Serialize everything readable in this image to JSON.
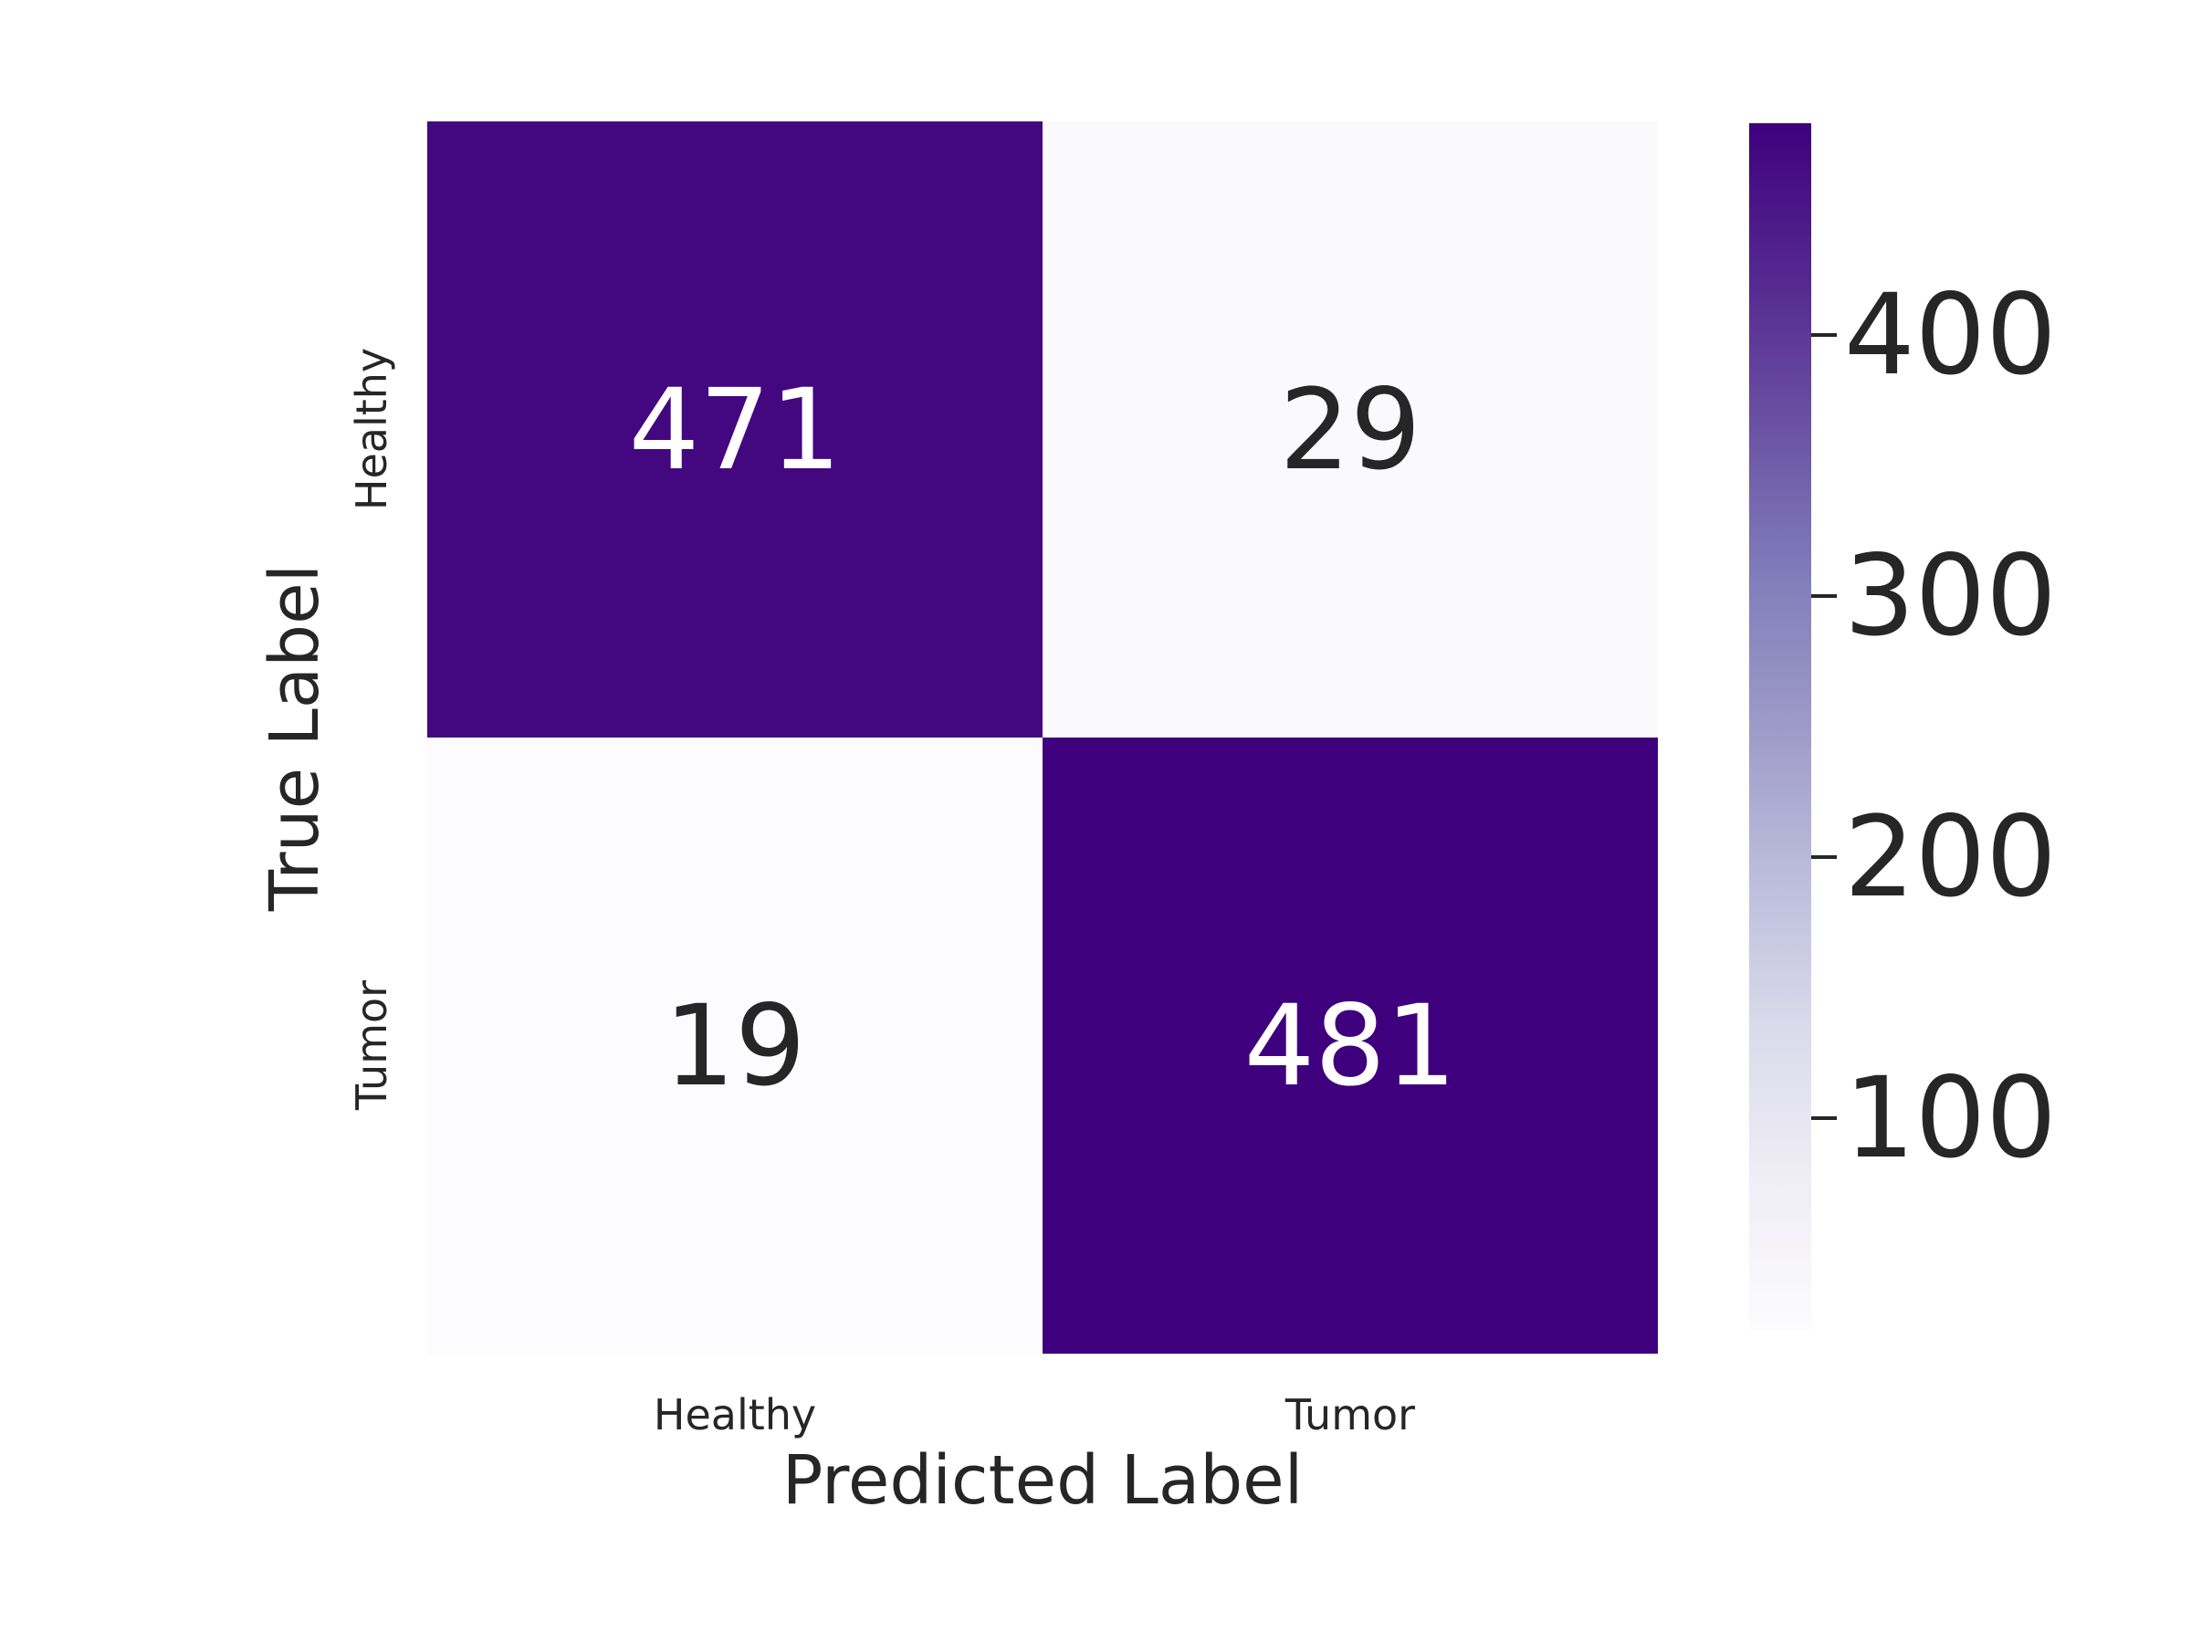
{
  "chart_data": {
    "type": "heatmap",
    "title": "",
    "xlabel": "Predicted Label",
    "ylabel": "True Label",
    "x_categories": [
      "Healthy",
      "Tumor"
    ],
    "y_categories": [
      "Healthy",
      "Tumor"
    ],
    "matrix": [
      [
        471,
        29
      ],
      [
        19,
        481
      ]
    ],
    "annotations_on": true,
    "grid": false,
    "colorbar": {
      "vmin": 19,
      "vmax": 481,
      "tick_labels": [
        "400",
        "300",
        "200",
        "100"
      ],
      "tick_values": [
        400,
        300,
        200,
        100
      ],
      "colormap": "Purples",
      "gradient_stops_top_to_bottom": [
        {
          "color": "#3f007d",
          "pos": 0
        },
        {
          "color": "#54278f",
          "pos": 12.5
        },
        {
          "color": "#6a51a3",
          "pos": 25
        },
        {
          "color": "#807dba",
          "pos": 37.5
        },
        {
          "color": "#9e9ac8",
          "pos": 50
        },
        {
          "color": "#bcbddc",
          "pos": 62.5
        },
        {
          "color": "#dadaeb",
          "pos": 75
        },
        {
          "color": "#efedf5",
          "pos": 87.5
        },
        {
          "color": "#fcfbfd",
          "pos": 100
        }
      ]
    }
  },
  "cells": {
    "tl": {
      "bg": "#430780",
      "fg": "#ffffff"
    },
    "tr": {
      "bg": "#faf9fc",
      "fg": "#262626"
    },
    "bl": {
      "bg": "#fcfbfd",
      "fg": "#262626"
    },
    "br": {
      "bg": "#3f007d",
      "fg": "#ffffff"
    }
  },
  "style": {
    "text_color": "#262626",
    "background": "#ffffff"
  }
}
